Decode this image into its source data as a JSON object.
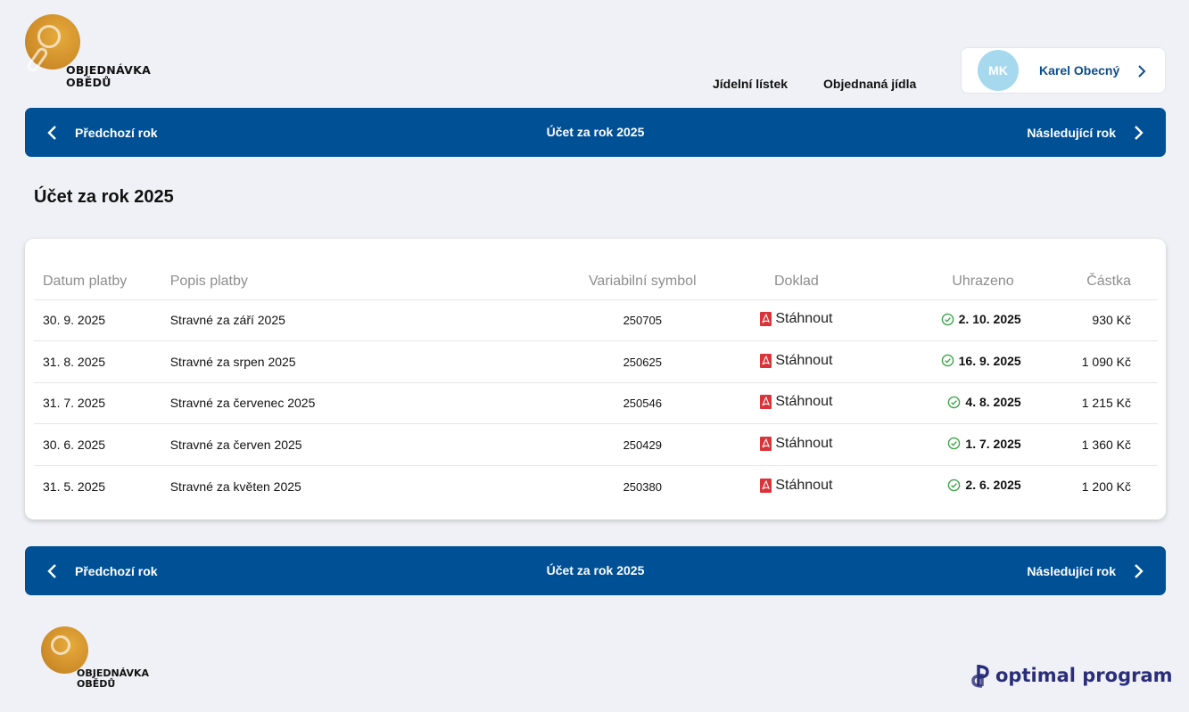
{
  "logo": {
    "line1": "OBJEDNÁVKA",
    "line2": "OBĚDŮ"
  },
  "nav": {
    "menu": "Jídelní lístek",
    "orders": "Objednaná jídla"
  },
  "user": {
    "initials": "MK",
    "name": "Karel Obecný"
  },
  "year_bar": {
    "prev": "Předchozí rok",
    "title": "Účet za rok 2025",
    "next": "Následující rok"
  },
  "page_title": "Účet za rok 2025",
  "table": {
    "headers": {
      "date": "Datum platby",
      "desc": "Popis platby",
      "var": "Variabilní symbol",
      "doc": "Doklad",
      "paid": "Uhrazeno",
      "amount": "Částka"
    },
    "rows": [
      {
        "date": "30. 9. 2025",
        "desc": "Stravné za září 2025",
        "var": "250705",
        "doc": "Stáhnout",
        "paid": "2. 10. 2025",
        "amount": "930 Kč"
      },
      {
        "date": "31. 8. 2025",
        "desc": "Stravné za srpen 2025",
        "var": "250625",
        "doc": "Stáhnout",
        "paid": "16. 9. 2025",
        "amount": "1 090 Kč"
      },
      {
        "date": "31. 7. 2025",
        "desc": "Stravné za červenec 2025",
        "var": "250546",
        "doc": "Stáhnout",
        "paid": "4. 8. 2025",
        "amount": "1 215 Kč"
      },
      {
        "date": "30. 6. 2025",
        "desc": "Stravné za červen 2025",
        "var": "250429",
        "doc": "Stáhnout",
        "paid": "1. 7. 2025",
        "amount": "1 360 Kč"
      },
      {
        "date": "31. 5. 2025",
        "desc": "Stravné za květen 2025",
        "var": "250380",
        "doc": "Stáhnout",
        "paid": "2. 6. 2025",
        "amount": "1 200 Kč"
      }
    ]
  },
  "footer": {
    "logo_line1": "OBJEDNÁVKA",
    "logo_line2": "OBĚDŮ",
    "partner": "optimal program"
  },
  "colors": {
    "primary": "#005096",
    "accent": "#0d4d8c",
    "background": "#f0f1f6",
    "pdf": "#d9343a",
    "paid_check": "#3ea54a"
  }
}
